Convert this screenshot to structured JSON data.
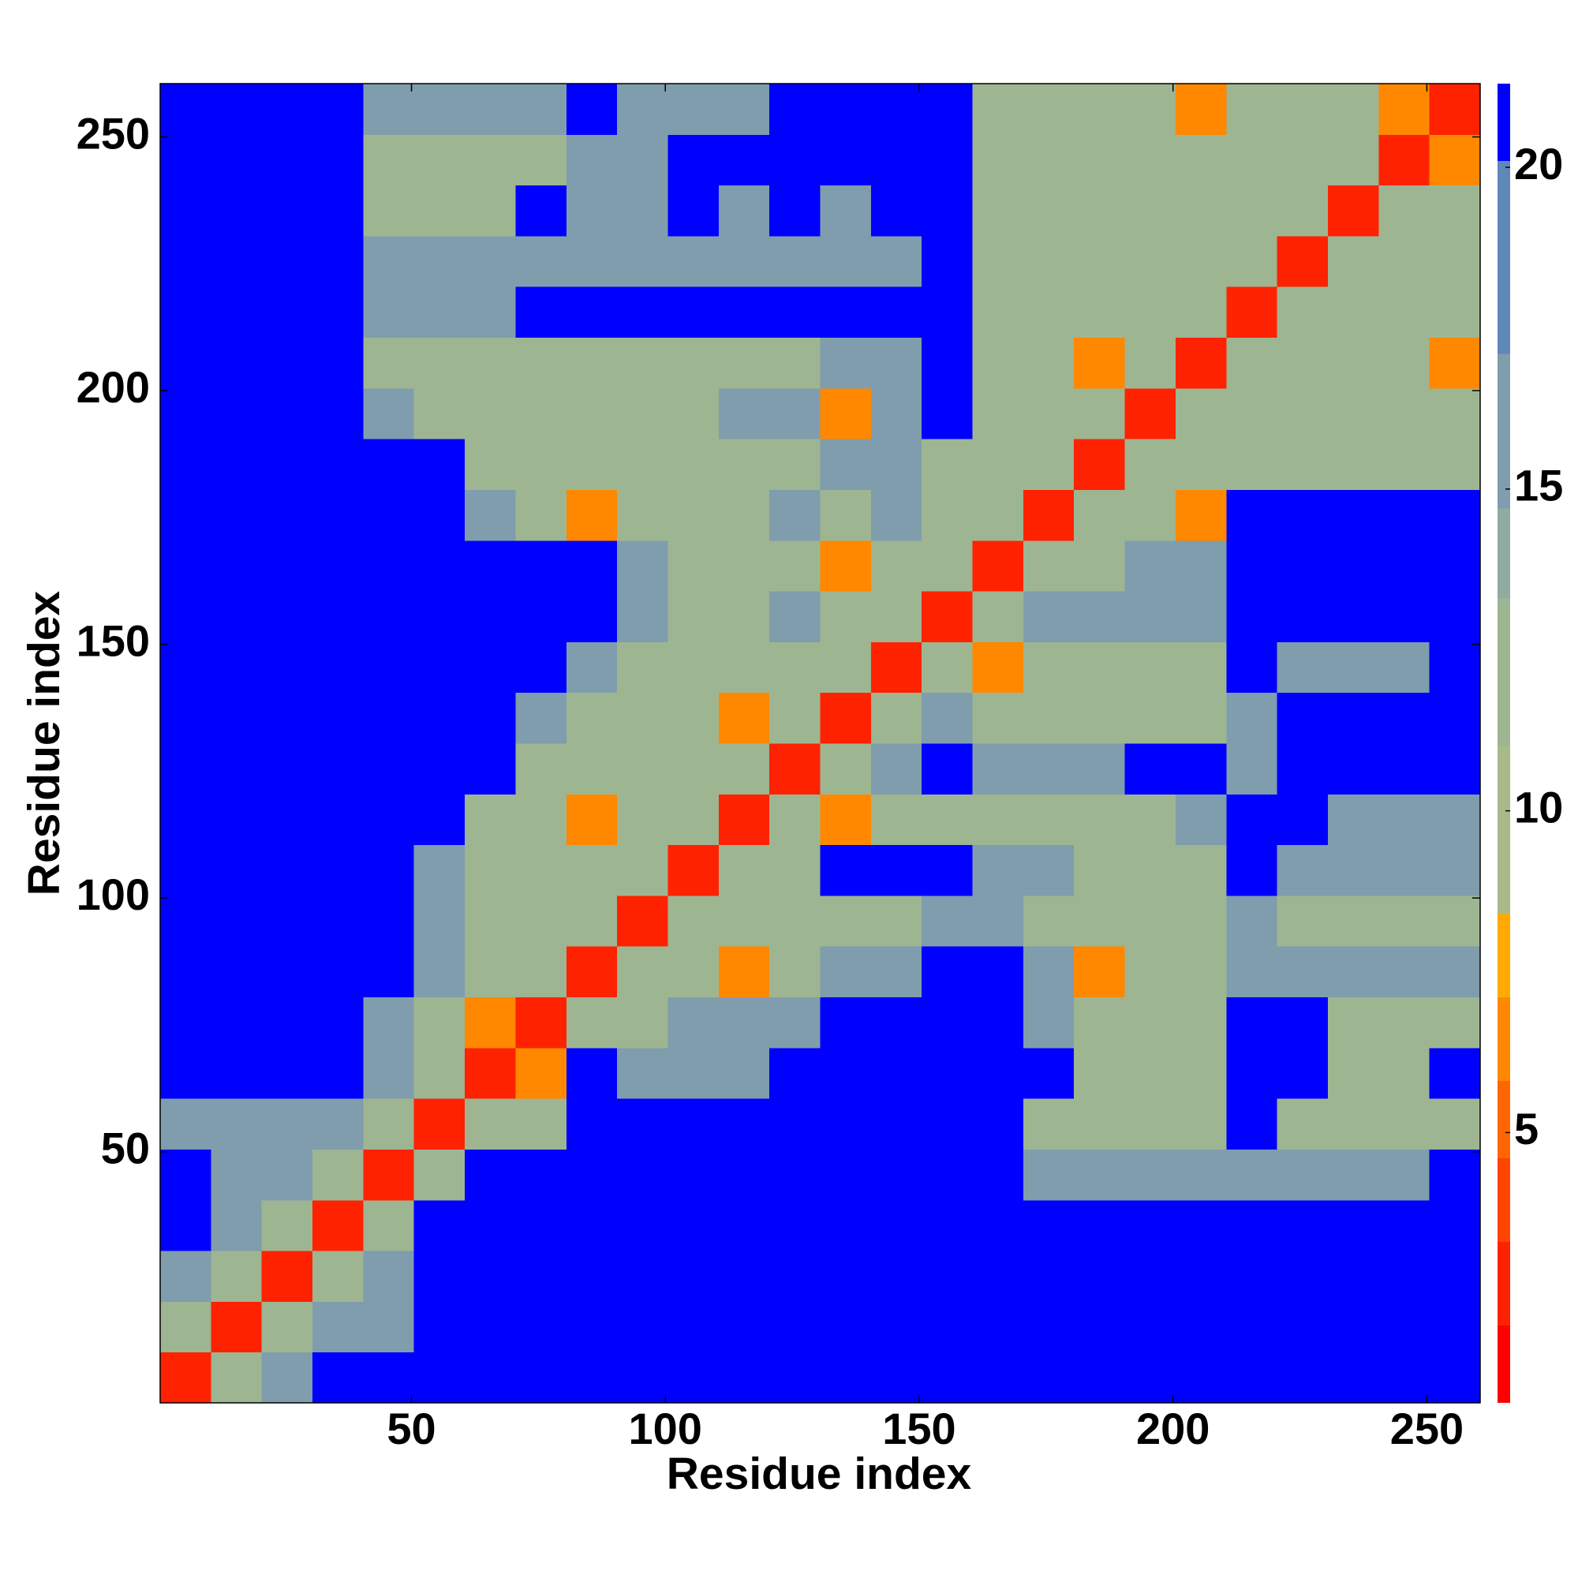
{
  "chart_data": {
    "type": "heatmap",
    "xlabel": "Residue index",
    "ylabel": "Residue index",
    "xlim": [
      0.5,
      260.5
    ],
    "ylim": [
      0.5,
      260.5
    ],
    "xticks": [
      50,
      100,
      150,
      200,
      250
    ],
    "yticks": [
      50,
      100,
      150,
      200,
      250
    ],
    "clim": [
      0.8,
      21.3
    ],
    "cticks": [
      5,
      10,
      15,
      20
    ],
    "color_bounds": [
      0.8,
      2,
      3.3,
      4.6,
      5.8,
      7.1,
      8.4,
      11,
      13.3,
      14.7,
      17.1,
      20.1,
      21.3
    ],
    "colors": [
      "#ff0000",
      "#ff2200",
      "#ff4400",
      "#ff6600",
      "#ff8800",
      "#ffaa00",
      "#a8b98a",
      "#9eb592",
      "#90ab9f",
      "#7f9dad",
      "#5f88b8",
      "#0000ff"
    ],
    "z": [
      [
        2,
        12,
        17,
        21,
        21,
        21,
        21,
        21,
        21,
        21,
        21,
        21,
        21,
        21,
        21,
        21,
        21,
        21,
        21,
        21,
        21,
        21,
        21,
        21,
        21,
        21
      ],
      [
        12,
        2,
        12,
        17,
        17,
        21,
        21,
        21,
        21,
        21,
        21,
        21,
        21,
        21,
        21,
        21,
        21,
        21,
        21,
        21,
        21,
        21,
        21,
        21,
        21,
        21
      ],
      [
        17,
        12,
        2,
        12,
        17,
        21,
        21,
        21,
        21,
        21,
        21,
        21,
        21,
        21,
        21,
        21,
        21,
        21,
        21,
        21,
        21,
        21,
        21,
        21,
        21,
        21
      ],
      [
        21,
        17,
        12,
        2,
        12,
        21,
        21,
        21,
        21,
        21,
        21,
        21,
        21,
        21,
        21,
        21,
        21,
        21,
        21,
        21,
        21,
        21,
        21,
        21,
        21,
        21
      ],
      [
        21,
        17,
        17,
        12,
        2,
        12,
        21,
        21,
        21,
        21,
        21,
        21,
        21,
        21,
        21,
        21,
        21,
        17,
        17,
        17,
        17,
        17,
        17,
        17,
        17,
        21
      ],
      [
        17,
        17,
        17,
        17,
        12,
        2,
        12,
        12,
        21,
        21,
        21,
        21,
        21,
        21,
        21,
        21,
        21,
        12,
        12,
        12,
        12,
        21,
        12,
        12,
        12,
        12
      ],
      [
        21,
        21,
        21,
        21,
        17,
        12,
        2,
        7,
        21,
        17,
        17,
        17,
        21,
        21,
        21,
        21,
        21,
        21,
        12,
        12,
        12,
        21,
        21,
        12,
        12,
        21
      ],
      [
        21,
        21,
        21,
        21,
        17,
        12,
        7,
        2,
        12,
        12,
        17,
        17,
        17,
        21,
        21,
        21,
        21,
        17,
        12,
        12,
        12,
        21,
        21,
        12,
        12,
        12
      ],
      [
        21,
        21,
        21,
        21,
        21,
        17,
        12,
        12,
        2,
        12,
        12,
        7,
        12,
        17,
        17,
        21,
        21,
        17,
        7,
        12,
        12,
        17,
        17,
        17,
        17,
        17
      ],
      [
        21,
        21,
        21,
        21,
        21,
        17,
        12,
        12,
        12,
        2,
        12,
        12,
        12,
        12,
        12,
        17,
        17,
        12,
        12,
        12,
        12,
        17,
        12,
        12,
        12,
        12
      ],
      [
        21,
        21,
        21,
        21,
        21,
        17,
        12,
        12,
        12,
        12,
        2,
        12,
        12,
        21,
        21,
        21,
        17,
        17,
        12,
        12,
        12,
        21,
        17,
        17,
        17,
        17
      ],
      [
        21,
        21,
        21,
        21,
        21,
        21,
        12,
        12,
        7,
        12,
        12,
        2,
        12,
        7,
        12,
        12,
        12,
        12,
        12,
        12,
        17,
        21,
        21,
        17,
        17,
        17
      ],
      [
        21,
        21,
        21,
        21,
        21,
        21,
        21,
        12,
        12,
        12,
        12,
        12,
        2,
        12,
        17,
        21,
        17,
        17,
        17,
        21,
        21,
        17,
        21,
        21,
        21,
        21
      ],
      [
        21,
        21,
        21,
        21,
        21,
        21,
        21,
        17,
        12,
        12,
        12,
        7,
        12,
        2,
        12,
        17,
        12,
        12,
        12,
        12,
        12,
        17,
        21,
        21,
        21,
        21
      ],
      [
        21,
        21,
        21,
        21,
        21,
        21,
        21,
        21,
        17,
        12,
        12,
        12,
        12,
        12,
        2,
        12,
        7,
        12,
        12,
        12,
        12,
        21,
        17,
        17,
        17,
        21
      ],
      [
        21,
        21,
        21,
        21,
        21,
        21,
        21,
        21,
        21,
        17,
        12,
        12,
        17,
        12,
        12,
        2,
        12,
        17,
        17,
        17,
        17,
        21,
        21,
        21,
        21,
        21
      ],
      [
        21,
        21,
        21,
        21,
        21,
        21,
        21,
        21,
        21,
        17,
        12,
        12,
        12,
        7,
        12,
        12,
        2,
        12,
        12,
        17,
        17,
        21,
        21,
        21,
        21,
        21
      ],
      [
        21,
        21,
        21,
        21,
        21,
        21,
        17,
        12,
        7,
        12,
        12,
        12,
        17,
        12,
        17,
        12,
        12,
        2,
        12,
        12,
        7,
        21,
        21,
        21,
        21,
        21
      ],
      [
        21,
        21,
        21,
        21,
        21,
        21,
        12,
        12,
        12,
        12,
        12,
        12,
        12,
        17,
        17,
        12,
        12,
        12,
        2,
        12,
        12,
        12,
        12,
        12,
        12,
        12
      ],
      [
        21,
        21,
        21,
        21,
        17,
        12,
        12,
        12,
        12,
        12,
        12,
        17,
        17,
        7,
        17,
        21,
        12,
        12,
        12,
        2,
        12,
        12,
        12,
        12,
        12,
        12
      ],
      [
        21,
        21,
        21,
        21,
        12,
        12,
        12,
        12,
        12,
        12,
        12,
        12,
        12,
        17,
        17,
        21,
        12,
        12,
        7,
        12,
        2,
        12,
        12,
        12,
        12,
        7
      ],
      [
        21,
        21,
        21,
        21,
        17,
        17,
        17,
        21,
        21,
        21,
        21,
        21,
        21,
        21,
        21,
        21,
        12,
        12,
        12,
        12,
        12,
        2,
        12,
        12,
        12,
        12
      ],
      [
        21,
        21,
        21,
        21,
        17,
        17,
        17,
        17,
        17,
        17,
        17,
        17,
        17,
        17,
        17,
        21,
        12,
        12,
        12,
        12,
        12,
        12,
        2,
        12,
        12,
        12
      ],
      [
        21,
        21,
        21,
        21,
        12,
        12,
        12,
        21,
        17,
        17,
        21,
        17,
        21,
        17,
        21,
        21,
        12,
        12,
        12,
        12,
        12,
        12,
        12,
        2,
        12,
        12
      ],
      [
        21,
        21,
        21,
        21,
        12,
        12,
        12,
        12,
        17,
        17,
        21,
        21,
        21,
        21,
        21,
        21,
        12,
        12,
        12,
        12,
        12,
        12,
        12,
        12,
        2,
        7
      ],
      [
        21,
        21,
        21,
        21,
        17,
        17,
        17,
        17,
        21,
        17,
        17,
        17,
        21,
        21,
        21,
        21,
        12,
        12,
        12,
        12,
        7,
        12,
        12,
        12,
        7,
        2
      ]
    ]
  }
}
